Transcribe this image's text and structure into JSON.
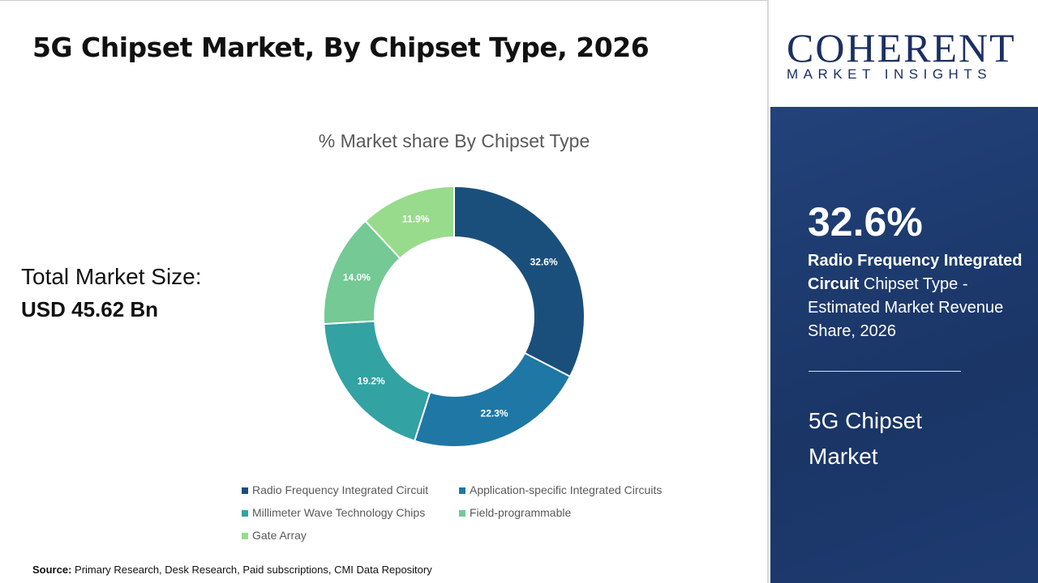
{
  "title": "5G Chipset Market, By Chipset Type, 2026",
  "total": {
    "label": "Total Market Size:",
    "value": "USD 45.62 Bn"
  },
  "source": {
    "label": "Source:",
    "text": " Primary Research, Desk Research, Paid subscriptions, CMI Data Repository"
  },
  "logo": {
    "line1": "COHERENT",
    "line2": "MARKET INSIGHTS"
  },
  "side": {
    "big": "32.6%",
    "bold": "Radio Frequency Integrated Circuit",
    "rest": " Chipset Type - Estimated Market Revenue Share, 2026",
    "market": "5G Chipset Market"
  },
  "chart_data": {
    "type": "pie",
    "donut": true,
    "title": "% Market share By Chipset Type",
    "categories": [
      "Radio Frequency Integrated Circuit",
      "Application-specific Integrated Circuits",
      "Millimeter Wave Technology Chips",
      "Field-programmable",
      "Gate Array"
    ],
    "values": [
      32.6,
      22.3,
      19.2,
      14.0,
      11.9
    ],
    "labels": [
      "32.6%",
      "22.3%",
      "19.2%",
      "14.0%",
      "11.9%"
    ],
    "colors": [
      "#1b4f7b",
      "#1f77a5",
      "#32a2a2",
      "#74c995",
      "#98db8c"
    ],
    "legend": "bottom"
  }
}
